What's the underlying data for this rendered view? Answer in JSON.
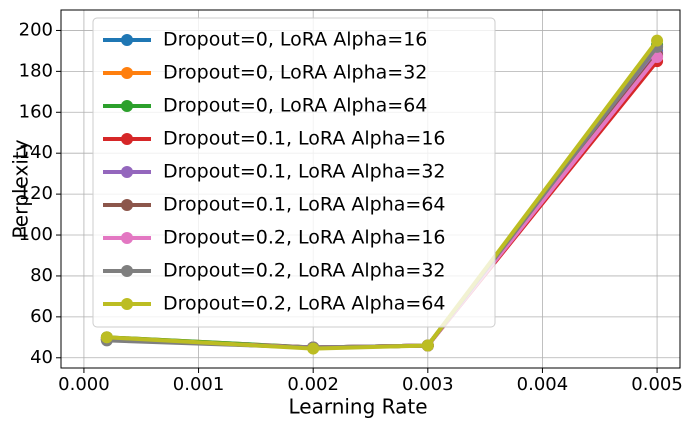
{
  "chart_data": {
    "type": "line",
    "x_label": "Learning Rate",
    "y_label": "Perplexity",
    "x": [
      0.0002,
      0.002,
      0.003,
      0.005
    ],
    "series": [
      {
        "name": "Dropout=0, LoRA Alpha=16",
        "color": "#1f77b4",
        "values": [
          49,
          45,
          46,
          190
        ]
      },
      {
        "name": "Dropout=0, LoRA Alpha=32",
        "color": "#ff7f0e",
        "values": [
          50,
          45,
          46,
          192
        ]
      },
      {
        "name": "Dropout=0, LoRA Alpha=64",
        "color": "#2ca02c",
        "values": [
          50,
          45,
          46,
          193
        ]
      },
      {
        "name": "Dropout=0.1, LoRA Alpha=16",
        "color": "#d62728",
        "values": [
          49,
          45,
          46,
          185
        ]
      },
      {
        "name": "Dropout=0.1, LoRA Alpha=32",
        "color": "#9467bd",
        "values": [
          49,
          45,
          46,
          189
        ]
      },
      {
        "name": "Dropout=0.1, LoRA Alpha=64",
        "color": "#8c564b",
        "values": [
          49,
          45,
          46,
          188
        ]
      },
      {
        "name": "Dropout=0.2, LoRA Alpha=16",
        "color": "#e377c2",
        "values": [
          49,
          45,
          46,
          187
        ]
      },
      {
        "name": "Dropout=0.2, LoRA Alpha=32",
        "color": "#7f7f7f",
        "values": [
          48.5,
          45,
          46,
          192
        ]
      },
      {
        "name": "Dropout=0.2, LoRA Alpha=64",
        "color": "#bcbd22",
        "values": [
          50,
          44.5,
          46,
          195
        ]
      }
    ],
    "xlim": [
      -0.0002,
      0.0052
    ],
    "xticks": [
      {
        "value": 0,
        "label": "0.000"
      },
      {
        "value": 0.001,
        "label": "0.001"
      },
      {
        "value": 0.002,
        "label": "0.002"
      },
      {
        "value": 0.003,
        "label": "0.003"
      },
      {
        "value": 0.004,
        "label": "0.004"
      },
      {
        "value": 0.005,
        "label": "0.005"
      }
    ],
    "ylim": [
      35,
      210
    ],
    "yticks": [
      40,
      60,
      80,
      100,
      120,
      140,
      160,
      180,
      200
    ],
    "grid": true,
    "legend": "upper left"
  }
}
